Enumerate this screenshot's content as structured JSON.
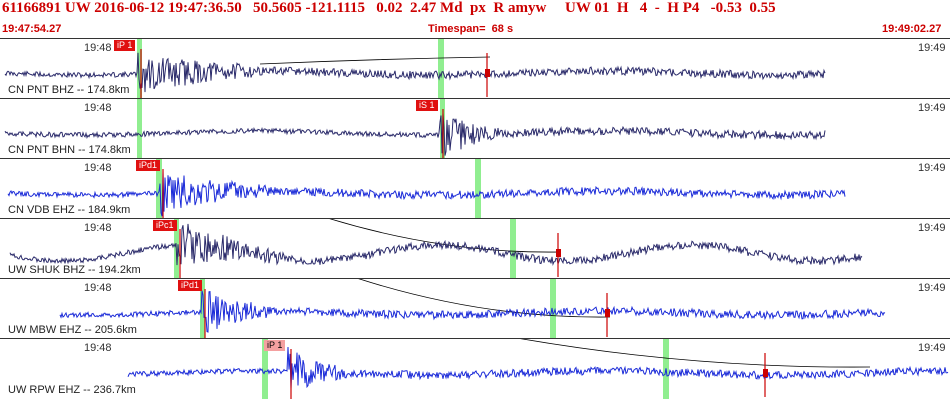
{
  "header": {
    "title": "61166891 UW 2016-06-12 19:47:36.50   50.5605 -121.1115   0.02  2.47 Md  px  R amyw     UW 01  H   4  -  H P4   -0.53  0.55",
    "start_time": "19:47:54.27",
    "timespan": "Timespan=  68 s",
    "end_time": "19:49:02.27"
  },
  "time_marks": {
    "left": "19:48",
    "right": "19:49"
  },
  "panels": [
    {
      "label": "CN PNT BHZ -- 174.8km",
      "pick": "iP 1",
      "pick_style": "red",
      "color": "#2a2a6a"
    },
    {
      "label": "CN PNT BHN -- 174.8km",
      "pick": "iS 1",
      "pick_style": "red",
      "color": "#2a2a6a"
    },
    {
      "label": "CN VDB EHZ -- 184.9km",
      "pick": "iPd1",
      "pick_style": "red",
      "color": "#1a2ad8"
    },
    {
      "label": "UW SHUK BHZ -- 194.2km",
      "pick": "iPc1",
      "pick_style": "red",
      "color": "#2a2a6a"
    },
    {
      "label": "UW MBW EHZ -- 205.6km",
      "pick": "iPd1",
      "pick_style": "red",
      "color": "#1a2ad8"
    },
    {
      "label": "UW RPW EHZ -- 236.7km",
      "pick": "iP 1",
      "pick_style": "light",
      "color": "#1a2ad8"
    }
  ],
  "colors": {
    "header_text": "#cc0000",
    "green_marker": "#90ee90",
    "pick_line": "#cc0000",
    "theory_curve": "#000000"
  },
  "icons": [
    "pick-flag-icon",
    "amplitude-marker-icon"
  ]
}
